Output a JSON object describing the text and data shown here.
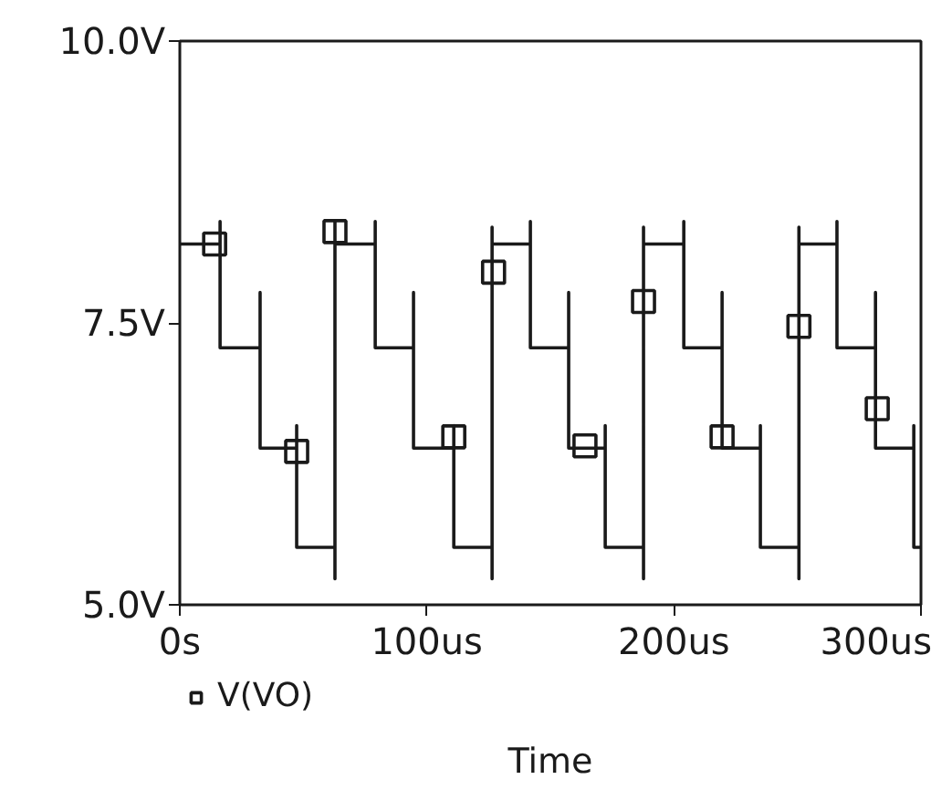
{
  "chart_data": {
    "type": "line",
    "xlabel": "Time",
    "xlim": [
      0,
      300
    ],
    "ylim": [
      5,
      10
    ],
    "xticks": [
      {
        "value": 0,
        "label": "0s"
      },
      {
        "value": 100,
        "label": "100us"
      },
      {
        "value": 200,
        "label": "200us"
      },
      {
        "value": 300,
        "label": "300us"
      }
    ],
    "yticks": [
      {
        "value": 5,
        "label": "5.0V"
      },
      {
        "value": 7.5,
        "label": "7.5V"
      },
      {
        "value": 10,
        "label": "10.0V"
      }
    ],
    "grid": false,
    "legend": "bottom left",
    "series": [
      {
        "type": "line",
        "color": "#1a1a1a",
        "x": [
          0,
          16.3,
          16.3,
          16.3,
          32.5,
          32.5,
          32.5,
          47.3,
          47.3,
          47.3,
          62.8,
          62.8,
          62.8,
          62.8,
          79.1,
          79.1,
          79.1,
          94.6,
          94.6,
          94.6,
          110.9,
          110.9,
          110.9,
          126.4,
          126.4,
          126.4,
          126.4,
          141.9,
          141.9,
          141.9,
          157.4,
          157.4,
          157.4,
          172.2,
          172.2,
          172.2,
          187.7,
          187.7,
          187.7,
          187.7,
          204,
          204,
          204,
          219.5,
          219.5,
          219.5,
          235,
          235,
          235,
          250.6,
          250.6,
          250.6,
          250.6,
          266,
          266,
          266,
          281.6,
          281.6,
          281.6,
          297.1,
          297.1,
          297.1,
          300
        ],
        "values": [
          8.2,
          8.2,
          8.4,
          7.28,
          7.28,
          7.77,
          6.39,
          6.39,
          6.59,
          5.51,
          5.51,
          5.23,
          8.4,
          8.2,
          8.2,
          8.4,
          7.28,
          7.28,
          7.77,
          6.39,
          6.39,
          6.59,
          5.51,
          5.51,
          5.23,
          8.35,
          8.2,
          8.2,
          8.4,
          7.28,
          7.28,
          7.77,
          6.39,
          6.39,
          6.59,
          5.51,
          5.51,
          5.23,
          8.35,
          8.2,
          8.2,
          8.4,
          7.28,
          7.28,
          7.77,
          6.39,
          6.39,
          6.59,
          5.51,
          5.51,
          5.23,
          8.35,
          8.2,
          8.2,
          8.4,
          7.28,
          7.28,
          7.77,
          6.39,
          6.39,
          6.59,
          5.51,
          5.51
        ]
      },
      {
        "type": "scatter",
        "name": "V(VO)",
        "marker": "square",
        "color": "#1a1a1a",
        "x": [
          14.1,
          47.3,
          62.8,
          110.9,
          127,
          164,
          187.7,
          219.5,
          250.6,
          282.3
        ],
        "values": [
          8.2,
          6.36,
          8.31,
          6.49,
          7.95,
          6.41,
          7.69,
          6.49,
          7.47,
          6.74
        ]
      }
    ]
  }
}
